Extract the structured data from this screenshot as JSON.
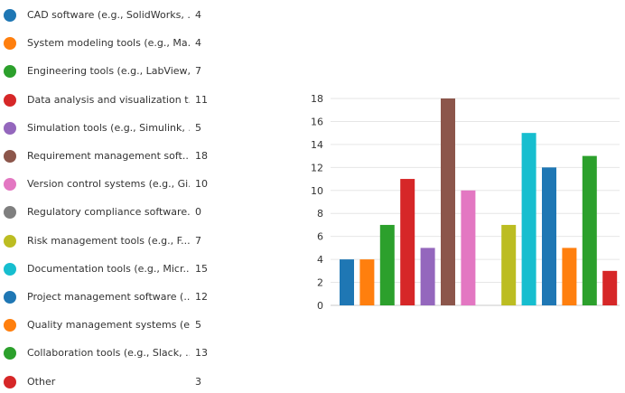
{
  "chart_data": {
    "type": "bar",
    "title": "",
    "xlabel": "",
    "ylabel": "",
    "ylim": [
      0,
      18
    ],
    "yticks": [
      0,
      2,
      4,
      6,
      8,
      10,
      12,
      14,
      16,
      18
    ],
    "grid": true,
    "legend_position": "left",
    "categories": [
      "CAD software (e.g., SolidWorks, ...",
      "System modeling tools (e.g., Ma...",
      "Engineering tools (e.g., LabView,...",
      "Data analysis and visualization t...",
      "Simulation tools (e.g., Simulink, ...",
      "Requirement management soft...",
      "Version control systems (e.g., Gi...",
      "Regulatory compliance software...",
      "Risk management tools (e.g., F...",
      "Documentation tools (e.g., Micr...",
      "Project management software (...",
      "Quality management systems (e...",
      "Collaboration tools (e.g., Slack, ...",
      "Other"
    ],
    "values": [
      4,
      4,
      7,
      11,
      5,
      18,
      10,
      0,
      7,
      15,
      12,
      5,
      13,
      3
    ],
    "colors": [
      "#1f77b4",
      "#ff7f0e",
      "#2ca02c",
      "#d62728",
      "#9467bd",
      "#8c564b",
      "#e377c2",
      "#7f7f7f",
      "#bcbd22",
      "#17becf",
      "#1f77b4",
      "#ff7f0e",
      "#2ca02c",
      "#d62728"
    ]
  }
}
